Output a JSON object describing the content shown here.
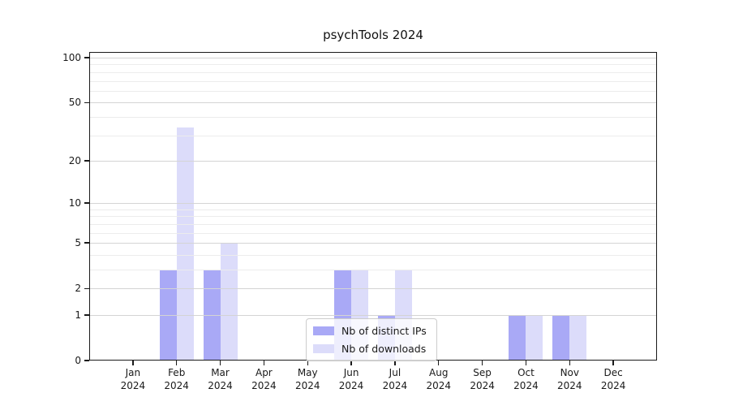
{
  "chart_data": {
    "type": "bar",
    "title": "psychTools 2024",
    "x_year": "2024",
    "categories": [
      "Jan",
      "Feb",
      "Mar",
      "Apr",
      "May",
      "Jun",
      "Jul",
      "Aug",
      "Sep",
      "Oct",
      "Nov",
      "Dec"
    ],
    "series": [
      {
        "name": "Nb of distinct IPs",
        "color": "#a9a9f6",
        "values": [
          0,
          3,
          3,
          0,
          0,
          3,
          1,
          0,
          0,
          1,
          1,
          0
        ]
      },
      {
        "name": "Nb of downloads",
        "color": "#dcdcfa",
        "values": [
          0,
          34,
          5,
          0,
          0,
          3,
          3,
          0,
          0,
          1,
          1,
          0
        ]
      }
    ],
    "yscale": "log1p",
    "ylim": [
      0,
      108
    ],
    "ytick_labels": [
      0,
      1,
      2,
      5,
      10,
      20,
      50,
      100
    ],
    "major_gridlines": [
      1,
      2,
      5,
      10,
      20,
      50,
      100
    ],
    "minor_gridlines": [
      3,
      4,
      6,
      7,
      8,
      9,
      30,
      40,
      60,
      70,
      80,
      90
    ],
    "grid": true,
    "grid_on_top": true,
    "legend_position": "lower center",
    "colors": {
      "major_grid": "#d4d4d4",
      "minor_grid": "#ececec",
      "spine": "#1a1a1a",
      "text": "#1a1a1a",
      "background": "#ffffff"
    }
  }
}
